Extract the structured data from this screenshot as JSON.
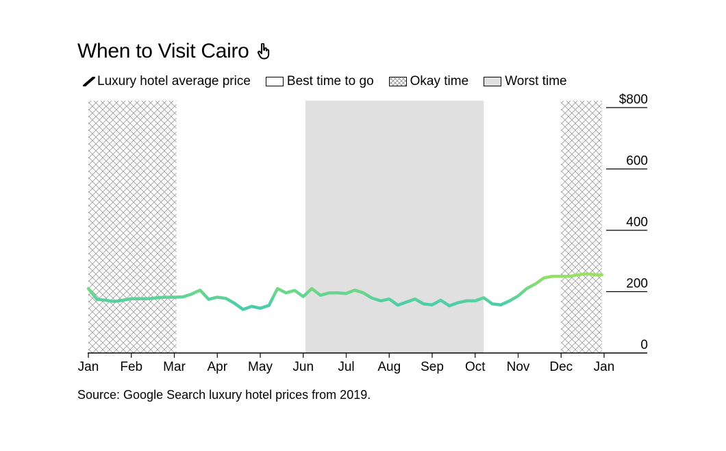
{
  "title": "When to Visit Cairo",
  "title_icon": "hand-pointer-icon",
  "legend": [
    {
      "key": "line",
      "label": "Luxury hotel average price"
    },
    {
      "key": "best",
      "label": "Best time to go"
    },
    {
      "key": "okay",
      "label": "Okay time"
    },
    {
      "key": "worst",
      "label": "Worst time"
    }
  ],
  "source": "Source: Google Search luxury hotel prices from 2019.",
  "colors": {
    "line_low": "#2bbbe0",
    "line_high": "#a3e35a",
    "worst_fill": "#e0e0e0",
    "okay_hatch": "#9a9a9a",
    "axis": "#000000"
  },
  "chart_data": {
    "type": "line",
    "title": "When to Visit Cairo",
    "xlabel": "",
    "ylabel": "",
    "ylim": [
      0,
      800
    ],
    "y_ticks": [
      {
        "value": 800,
        "label": "$800"
      },
      {
        "value": 600,
        "label": "600"
      },
      {
        "value": 400,
        "label": "400"
      },
      {
        "value": 200,
        "label": "200"
      },
      {
        "value": 0,
        "label": "0"
      }
    ],
    "x_range": [
      0,
      12
    ],
    "x_ticks": [
      {
        "value": 0,
        "label": "Jan"
      },
      {
        "value": 1,
        "label": "Feb"
      },
      {
        "value": 2,
        "label": "Mar"
      },
      {
        "value": 3,
        "label": "Apr"
      },
      {
        "value": 4,
        "label": "May"
      },
      {
        "value": 5,
        "label": "Jun"
      },
      {
        "value": 6,
        "label": "Jul"
      },
      {
        "value": 7,
        "label": "Aug"
      },
      {
        "value": 8,
        "label": "Sep"
      },
      {
        "value": 9,
        "label": "Oct"
      },
      {
        "value": 10,
        "label": "Nov"
      },
      {
        "value": 11,
        "label": "Dec"
      },
      {
        "value": 12,
        "label": "Jan"
      }
    ],
    "bands": [
      {
        "type": "okay",
        "from": 0,
        "to": 2.05
      },
      {
        "type": "worst",
        "from": 5.05,
        "to": 9.2
      },
      {
        "type": "okay",
        "from": 11.0,
        "to": 11.95
      }
    ],
    "series": [
      {
        "name": "Luxury hotel average price",
        "x": [
          0.0,
          0.2,
          0.4,
          0.6,
          0.8,
          1.0,
          1.2,
          1.4,
          1.6,
          1.8,
          2.0,
          2.2,
          2.4,
          2.6,
          2.8,
          3.0,
          3.2,
          3.4,
          3.6,
          3.8,
          4.0,
          4.2,
          4.4,
          4.6,
          4.8,
          5.0,
          5.2,
          5.4,
          5.6,
          5.8,
          6.0,
          6.2,
          6.4,
          6.6,
          6.8,
          7.0,
          7.2,
          7.4,
          7.6,
          7.8,
          8.0,
          8.2,
          8.4,
          8.6,
          8.8,
          9.0,
          9.2,
          9.4,
          9.6,
          9.8,
          10.0,
          10.2,
          10.4,
          10.6,
          10.8,
          11.0,
          11.2,
          11.4,
          11.6,
          11.8,
          11.95
        ],
        "values": [
          210,
          175,
          172,
          168,
          172,
          177,
          177,
          177,
          180,
          182,
          182,
          183,
          192,
          205,
          175,
          182,
          178,
          162,
          142,
          152,
          146,
          155,
          210,
          196,
          204,
          184,
          210,
          188,
          196,
          196,
          194,
          205,
          196,
          179,
          170,
          176,
          156,
          166,
          176,
          160,
          157,
          172,
          154,
          164,
          170,
          170,
          180,
          160,
          157,
          170,
          186,
          210,
          225,
          245,
          250,
          250,
          250,
          255,
          258,
          255,
          255
        ]
      }
    ]
  }
}
